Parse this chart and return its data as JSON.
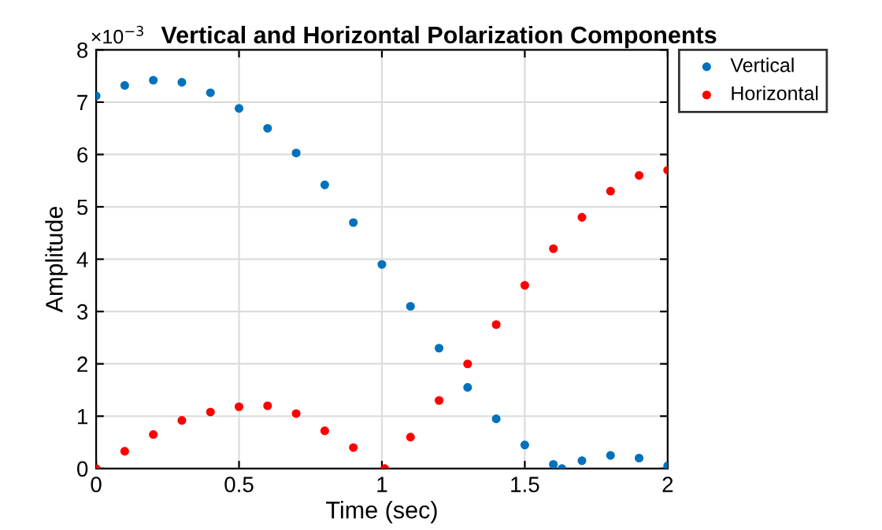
{
  "chart_data": {
    "type": "scatter",
    "title": "Vertical and Horizontal Polarization Components",
    "xlabel": "Time (sec)",
    "ylabel": "Amplitude",
    "annotations": [
      "×10$^{−3}$"
    ],
    "series": [
      {
        "name": "Vertical",
        "color": "#0072bd",
        "x": [
          0,
          0.1,
          0.2,
          0.3,
          0.4,
          0.5,
          0.6,
          0.7,
          0.8,
          0.9,
          1.0,
          1.1,
          1.2,
          1.3,
          1.4,
          1.5,
          1.6,
          1.63,
          1.7,
          1.8,
          1.9,
          2.0
        ],
        "values": [
          7.12,
          7.32,
          7.42,
          7.38,
          7.18,
          6.88,
          6.5,
          6.03,
          5.42,
          4.7,
          3.9,
          3.1,
          2.3,
          1.55,
          0.95,
          0.45,
          0.08,
          0,
          0.15,
          0.25,
          0.2,
          0.05
        ]
      },
      {
        "name": "Horizontal",
        "color": "#ff0000",
        "x": [
          0,
          0.1,
          0.2,
          0.3,
          0.4,
          0.5,
          0.6,
          0.7,
          0.8,
          0.9,
          1.01,
          1.1,
          1.2,
          1.3,
          1.4,
          1.5,
          1.6,
          1.7,
          1.8,
          1.9,
          2.0
        ],
        "values": [
          0,
          0.33,
          0.65,
          0.92,
          1.08,
          1.18,
          1.2,
          1.05,
          0.72,
          0.4,
          0,
          0.6,
          1.3,
          2.0,
          2.75,
          3.5,
          4.2,
          4.8,
          5.3,
          5.6,
          5.7
        ]
      }
    ],
    "xlim": [
      0,
      2
    ],
    "xticks": [
      0,
      0.5,
      1,
      1.5,
      2
    ],
    "ylim": [
      0,
      8
    ],
    "yticks": [
      0,
      1,
      2,
      3,
      4,
      5,
      6,
      7,
      8
    ],
    "grid": true,
    "legend": "top right",
    "marker": "circle"
  }
}
